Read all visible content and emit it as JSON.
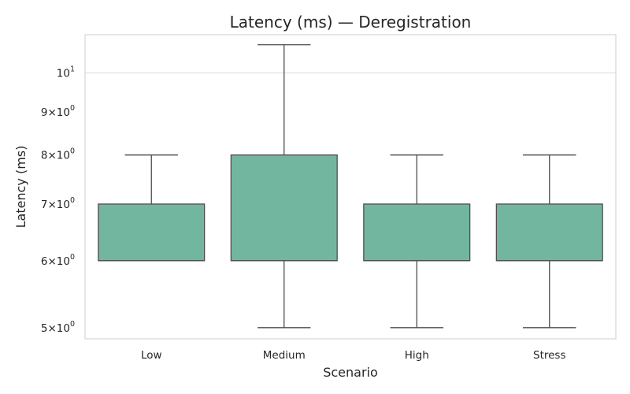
{
  "chart_data": {
    "type": "box",
    "title": "Latency (ms) — Deregistration",
    "xlabel": "Scenario",
    "ylabel": "Latency (ms)",
    "y_scale": "log",
    "ylim": [
      4.85,
      11.1
    ],
    "grid": "horizontal",
    "categories": [
      "Low",
      "Medium",
      "High",
      "Stress"
    ],
    "boxes": [
      {
        "category": "Low",
        "whisker_low": 6,
        "q1": 6,
        "median": 6,
        "q3": 7,
        "whisker_high": 8
      },
      {
        "category": "Medium",
        "whisker_low": 5,
        "q1": 6,
        "median": 6,
        "q3": 8,
        "whisker_high": 10.8
      },
      {
        "category": "High",
        "whisker_low": 5,
        "q1": 6,
        "median": 6,
        "q3": 7,
        "whisker_high": 8
      },
      {
        "category": "Stress",
        "whisker_low": 5,
        "q1": 6,
        "median": 6,
        "q3": 7,
        "whisker_high": 8
      }
    ],
    "yticks": [
      {
        "value": 5,
        "base": "5",
        "sep": "×",
        "pow_base": "10",
        "exp": "0"
      },
      {
        "value": 6,
        "base": "6",
        "sep": "×",
        "pow_base": "10",
        "exp": "0"
      },
      {
        "value": 7,
        "base": "7",
        "sep": "×",
        "pow_base": "10",
        "exp": "0"
      },
      {
        "value": 8,
        "base": "8",
        "sep": "×",
        "pow_base": "10",
        "exp": "0"
      },
      {
        "value": 9,
        "base": "9",
        "sep": "×",
        "pow_base": "10",
        "exp": "0"
      },
      {
        "value": 10,
        "base": "",
        "sep": "",
        "pow_base": "10",
        "exp": "1"
      }
    ],
    "colors": {
      "box_fill": "#73b6a0",
      "box_edge": "#4d4d4d",
      "grid": "#dcdcdc",
      "frame": "#cccccc"
    }
  }
}
